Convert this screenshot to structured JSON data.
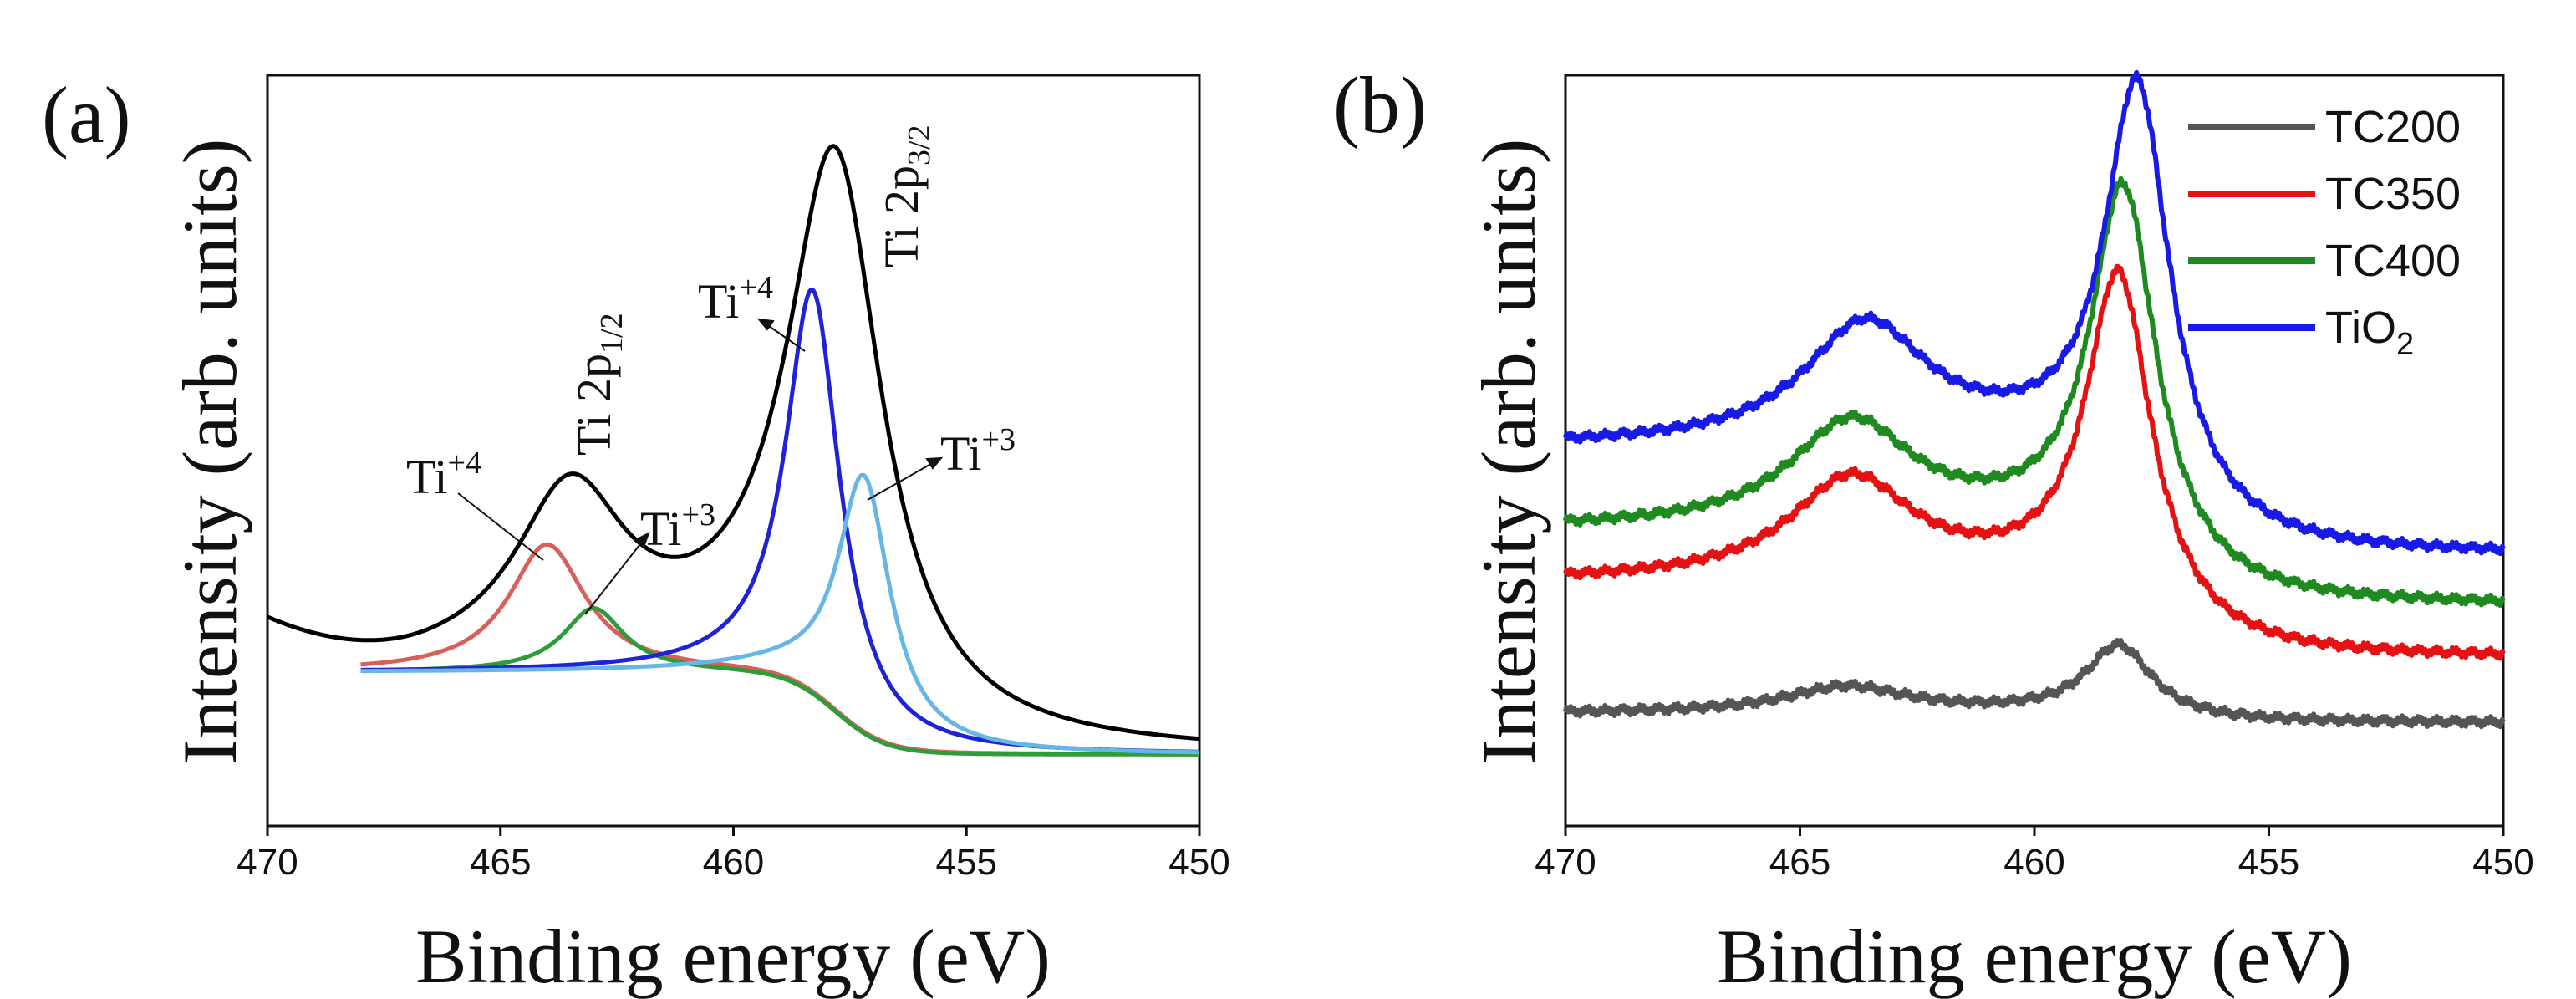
{
  "figure": {
    "panel_a_label": "(a)",
    "panel_b_label": "(b)"
  },
  "chart_data": [
    {
      "type": "line",
      "panel": "(a)",
      "title": "",
      "xlabel": "Binding energy (eV)",
      "ylabel": "Intensity (arb. units)",
      "xlim": [
        470,
        450
      ],
      "ylim": [
        0,
        1.0
      ],
      "xticks": [
        "470",
        "465",
        "460",
        "455",
        "450"
      ],
      "yticks_shown": false,
      "legend": false,
      "annotations": {
        "ti4_left": {
          "base": "Ti",
          "sup": "+4"
        },
        "ti3_left": {
          "base": "Ti",
          "sup": "+3"
        },
        "ti4_right": {
          "base": "Ti",
          "sup": "+4"
        },
        "ti3_right": {
          "base": "Ti",
          "sup": "+3"
        },
        "ti2p12": {
          "base": "Ti 2p",
          "sub": "1/2"
        },
        "ti2p32": {
          "base": "Ti 2p",
          "sub": "3/2"
        }
      },
      "background": {
        "left_level": 0.205,
        "right_level": 0.095,
        "step_center": 457.8,
        "step_width": 1.6
      },
      "series": [
        {
          "name": "envelope",
          "color": "#000000",
          "xrange": [
            470,
            450
          ],
          "edge": {
            "x0": 470,
            "x1": 466.5,
            "y0": 0.26
          },
          "peaks": [
            {
              "center": 463.5,
              "height": 0.23,
              "width": 1.45
            },
            {
              "center": 457.8,
              "height": 0.74,
              "width": 1.25
            }
          ]
        },
        {
          "name": "Ti+4 (2p1/2)",
          "color": "#d9605a",
          "xrange": [
            468,
            450
          ],
          "peaks": [
            {
              "center": 464.0,
              "height": 0.17,
              "width": 1.0
            }
          ]
        },
        {
          "name": "Ti+3 (2p1/2)",
          "color": "#2e9c38",
          "xrange": [
            468,
            450
          ],
          "peaks": [
            {
              "center": 463.0,
              "height": 0.085,
              "width": 0.8
            }
          ]
        },
        {
          "name": "Ti+4 (2p3/2)",
          "color": "#1f22d6",
          "xrange": [
            468,
            450
          ],
          "peaks": [
            {
              "center": 458.3,
              "height": 0.54,
              "width": 0.7
            }
          ]
        },
        {
          "name": "Ti+3 (2p3/2)",
          "color": "#66b6e6",
          "xrange": [
            468,
            450
          ],
          "peaks": [
            {
              "center": 457.2,
              "height": 0.345,
              "width": 0.7
            }
          ]
        }
      ]
    },
    {
      "type": "line",
      "panel": "(b)",
      "title": "",
      "xlabel": "Binding energy (eV)",
      "ylabel": "Intensity (arb. units)",
      "xlim": [
        470,
        450
      ],
      "ylim": [
        0,
        1.0
      ],
      "xticks": [
        "470",
        "465",
        "460",
        "455",
        "450"
      ],
      "yticks_shown": false,
      "legend": true,
      "legend_position": "top-right",
      "series": [
        {
          "name": "TC200",
          "legend_base": "TC200",
          "legend_sub": "",
          "color": "#555555",
          "baseline": [
            0.15,
            0.135
          ],
          "peaks": [
            {
              "center": 464.0,
              "height": 0.035,
              "width": 1.6
            },
            {
              "center": 458.2,
              "height": 0.095,
              "width": 0.85
            }
          ]
        },
        {
          "name": "TC350",
          "legend_base": "TC350",
          "legend_sub": "",
          "color": "#e41212",
          "baseline": [
            0.325,
            0.205
          ],
          "peaks": [
            {
              "center": 463.9,
              "height": 0.135,
              "width": 1.6
            },
            {
              "center": 458.2,
              "height": 0.45,
              "width": 0.85
            }
          ]
        },
        {
          "name": "TC400",
          "legend_base": "TC400",
          "legend_sub": "",
          "color": "#1e8a1f",
          "baseline": [
            0.395,
            0.275
          ],
          "peaks": [
            {
              "center": 463.9,
              "height": 0.14,
              "width": 1.6
            },
            {
              "center": 458.1,
              "height": 0.5,
              "width": 0.85
            }
          ]
        },
        {
          "name": "TiO2",
          "legend_base": "TiO",
          "legend_sub": "2",
          "color": "#1a1ae6",
          "baseline": [
            0.505,
            0.335
          ],
          "peaks": [
            {
              "center": 463.6,
              "height": 0.16,
              "width": 1.6
            },
            {
              "center": 457.8,
              "height": 0.56,
              "width": 0.85
            }
          ]
        }
      ]
    }
  ]
}
